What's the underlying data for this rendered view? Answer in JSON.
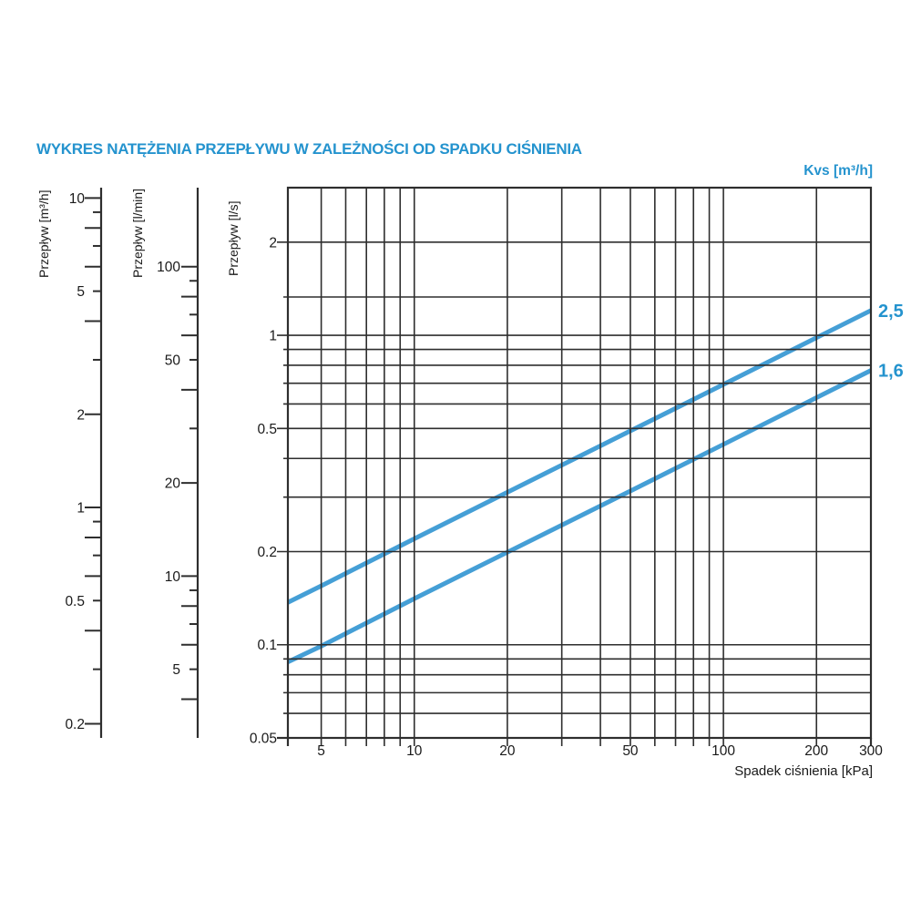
{
  "title": "WYKRES NATĘŻENIA PRZEPŁYWU W ZALEŻNOŚCI OD SPADKU CIŚNIENIA",
  "kvs_header": "Kvs [m³/h]",
  "colors": {
    "accent": "#2493CE",
    "line": "#459FD6",
    "grid": "#2e2e2e",
    "text": "#1a1a1a",
    "background": "#ffffff"
  },
  "chart_data": {
    "type": "line",
    "title": "WYKRES NATĘŻENIA PRZEPŁYWU W ZALEŻNOŚCI OD SPADKU CIŚNIENIA",
    "grid": true,
    "legend_position": "right-end-labels",
    "x_axis": {
      "label": "Spadek ciśnienia [kPa]",
      "unit": "kPa",
      "scale": "log",
      "min": 3.9,
      "max": 300,
      "gridlines": [
        5,
        6,
        7,
        8,
        9,
        10,
        20,
        30,
        40,
        50,
        60,
        70,
        80,
        90,
        100,
        200,
        300
      ],
      "tick_labels": [
        [
          "5",
          "5"
        ],
        [
          "10",
          "10"
        ],
        [
          "20",
          "20"
        ],
        [
          "50",
          "50"
        ],
        [
          "100",
          "100"
        ],
        [
          "200",
          "200"
        ],
        [
          "300",
          "300"
        ]
      ]
    },
    "y_axis": {
      "label": "Przepływ [l/s]",
      "unit": "l/s",
      "scale": "log",
      "min": 0.05,
      "max": 3.0,
      "gridlines": [
        2,
        1.33,
        1,
        0.9,
        0.8,
        0.7,
        0.6,
        0.5,
        0.4,
        0.3,
        0.2,
        0.1,
        0.09,
        0.08,
        0.07,
        0.06
      ],
      "major_values": [
        2,
        1,
        0.5,
        0.2,
        0.1
      ],
      "tick_labels": [
        [
          "2",
          "2"
        ],
        [
          "1",
          "1"
        ],
        [
          "0.5",
          "0.5"
        ],
        [
          "0.2",
          "0.2"
        ],
        [
          "0.1",
          "0.1"
        ],
        [
          "0.05",
          "0.05"
        ]
      ]
    },
    "nomograph_scales": [
      {
        "label": "Przepływ [m³/h]",
        "unit": "m³/h",
        "units_per_ls": 3.6,
        "ticks": [
          [
            10,
            "L",
            "10"
          ],
          [
            9,
            "S",
            ""
          ],
          [
            8,
            "L",
            ""
          ],
          [
            7,
            "S",
            ""
          ],
          [
            6,
            "L",
            ""
          ],
          [
            5,
            "S",
            "5"
          ],
          [
            4,
            "L",
            ""
          ],
          [
            3,
            "S",
            ""
          ],
          [
            2,
            "L",
            "2"
          ],
          [
            1,
            "L",
            "1"
          ],
          [
            0.9,
            "S",
            ""
          ],
          [
            0.8,
            "L",
            ""
          ],
          [
            0.7,
            "S",
            ""
          ],
          [
            0.6,
            "L",
            ""
          ],
          [
            0.5,
            "S",
            "0.5"
          ],
          [
            0.4,
            "L",
            ""
          ],
          [
            0.3,
            "S",
            ""
          ],
          [
            0.2,
            "L",
            "0.2"
          ]
        ]
      },
      {
        "label": "Przepływ [l/min]",
        "unit": "l/min",
        "units_per_ls": 60,
        "ticks": [
          [
            100,
            "L",
            "100"
          ],
          [
            90,
            "S",
            ""
          ],
          [
            80,
            "L",
            ""
          ],
          [
            70,
            "S",
            ""
          ],
          [
            60,
            "L",
            ""
          ],
          [
            50,
            "S",
            "50"
          ],
          [
            40,
            "L",
            ""
          ],
          [
            30,
            "S",
            ""
          ],
          [
            20,
            "L",
            "20"
          ],
          [
            10,
            "L",
            "10"
          ],
          [
            9,
            "S",
            ""
          ],
          [
            8,
            "L",
            ""
          ],
          [
            7,
            "S",
            ""
          ],
          [
            6,
            "L",
            ""
          ],
          [
            5,
            "S",
            "5"
          ],
          [
            4,
            "L",
            ""
          ]
        ]
      }
    ],
    "series": [
      {
        "name": "2,5",
        "kvs": 2.5,
        "points_kpa_ls": [
          [
            3.9,
            0.137
          ],
          [
            5,
            0.155
          ],
          [
            10,
            0.22
          ],
          [
            20,
            0.311
          ],
          [
            50,
            0.491
          ],
          [
            100,
            0.694
          ],
          [
            200,
            0.982
          ],
          [
            300,
            1.203
          ]
        ]
      },
      {
        "name": "1,6",
        "kvs": 1.6,
        "points_kpa_ls": [
          [
            3.9,
            0.088
          ],
          [
            5,
            0.099
          ],
          [
            10,
            0.141
          ],
          [
            20,
            0.199
          ],
          [
            50,
            0.314
          ],
          [
            100,
            0.444
          ],
          [
            200,
            0.629
          ],
          [
            300,
            0.77
          ]
        ]
      }
    ]
  }
}
